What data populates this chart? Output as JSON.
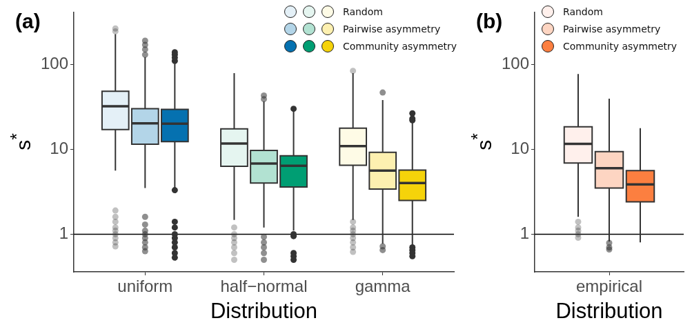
{
  "chart_data": [
    {
      "type": "box",
      "title": "(a)",
      "xlabel": "Distribution",
      "ylabel": "s$^{*}$",
      "categories": [
        "uniform",
        "half−normal",
        "gamma"
      ],
      "log": "y",
      "ylim": [
        0.36,
        414
      ],
      "yticks": [
        1,
        10,
        100
      ],
      "grid": false,
      "legend": "top right",
      "ref_lines": [
        {
          "axis": "y",
          "value": 1,
          "color": "#000000"
        }
      ],
      "series": [
        {
          "name": "Random",
          "colors": [
            "#e4f0f7",
            "#e5f5f0",
            "#fefbe6"
          ],
          "boxes": [
            {
              "low": 5.6,
              "q1": 17.1,
              "median": 32.1,
              "q3": 48.3,
              "high": 227,
              "outliers": [
                245,
                265,
                1.9,
                1.6,
                1.4,
                1.2,
                1.1,
                1.0,
                0.9,
                0.8,
                0.72
              ]
            },
            {
              "low": 1.47,
              "q1": 6.3,
              "median": 11.7,
              "q3": 17.4,
              "high": 79,
              "outliers": [
                1.2,
                1.0,
                0.9,
                0.8,
                0.7,
                0.6,
                0.5
              ]
            },
            {
              "low": 1.47,
              "q1": 6.5,
              "median": 10.9,
              "q3": 17.7,
              "high": 79,
              "outliers": [
                84,
                1.4,
                1.2,
                1.1,
                1.0,
                0.9,
                0.8,
                0.7,
                0.62
              ]
            }
          ]
        },
        {
          "name": "Pairwise asymmetry",
          "colors": [
            "#b3d5e8",
            "#b2e2d2",
            "#fdf0b0"
          ],
          "boxes": [
            {
              "low": 3.5,
              "q1": 11.5,
              "median": 20.2,
              "q3": 30.1,
              "high": 122,
              "outliers": [
                130,
                150,
                170,
                190,
                1.6,
                1.3,
                1.1,
                1.0,
                0.9,
                0.8,
                0.7,
                0.63
              ]
            },
            {
              "low": 1.2,
              "q1": 4.0,
              "median": 6.8,
              "q3": 9.7,
              "high": 36.7,
              "outliers": [
                39,
                43,
                0.93,
                0.8,
                0.7,
                0.6,
                0.5
              ]
            },
            {
              "low": 0.77,
              "q1": 3.4,
              "median": 5.6,
              "q3": 9.2,
              "high": 38,
              "outliers": [
                46.6,
                0.72,
                0.65
              ]
            }
          ]
        },
        {
          "name": "Community asymmetry",
          "colors": [
            "#0571b0",
            "#009e73",
            "#f5d30a"
          ],
          "boxes": [
            {
              "low": 3.4,
              "q1": 12.3,
              "median": 20.0,
              "q3": 29.5,
              "high": 102,
              "outliers": [
                110,
                120,
                130,
                139,
                3.3,
                1.4,
                1.2,
                1.0,
                0.9,
                0.8,
                0.7,
                0.6,
                0.53
              ]
            },
            {
              "low": 1.1,
              "q1": 3.6,
              "median": 6.4,
              "q3": 8.4,
              "high": 28,
              "outliers": [
                30,
                1.0,
                0.95,
                0.6,
                0.55,
                0.5
              ]
            },
            {
              "low": 0.75,
              "q1": 2.5,
              "median": 4.0,
              "q3": 5.7,
              "high": 21,
              "outliers": [
                22,
                23,
                26.5,
                0.7,
                0.65,
                0.6,
                0.55
              ]
            }
          ]
        }
      ]
    },
    {
      "type": "box",
      "title": "(b)",
      "xlabel": "Distribution",
      "ylabel": "s$^{*}$",
      "categories": [
        "empirical"
      ],
      "log": "y",
      "ylim": [
        0.36,
        414
      ],
      "yticks": [
        1,
        10,
        100
      ],
      "grid": false,
      "legend": "top left",
      "ref_lines": [
        {
          "axis": "y",
          "value": 1,
          "color": "#000000"
        }
      ],
      "series": [
        {
          "name": "Random",
          "colors": [
            "#fff0ec"
          ],
          "boxes": [
            {
              "low": 1.6,
              "q1": 6.9,
              "median": 11.6,
              "q3": 18.4,
              "high": 77,
              "outliers": [
                1.4,
                1.2,
                1.1,
                1.0,
                0.91
              ]
            }
          ]
        },
        {
          "name": "Pairwise asymmetry",
          "colors": [
            "#fdd5c2"
          ],
          "boxes": [
            {
              "low": 0.82,
              "q1": 3.5,
              "median": 6.0,
              "q3": 9.4,
              "high": 39.5,
              "outliers": [
                0.79,
                0.7,
                0.66
              ]
            }
          ]
        },
        {
          "name": "Community asymmetry",
          "colors": [
            "#fc7f40"
          ],
          "boxes": [
            {
              "low": 0.8,
              "q1": 2.4,
              "median": 3.85,
              "q3": 5.6,
              "high": 17.7
            }
          ]
        }
      ]
    }
  ]
}
